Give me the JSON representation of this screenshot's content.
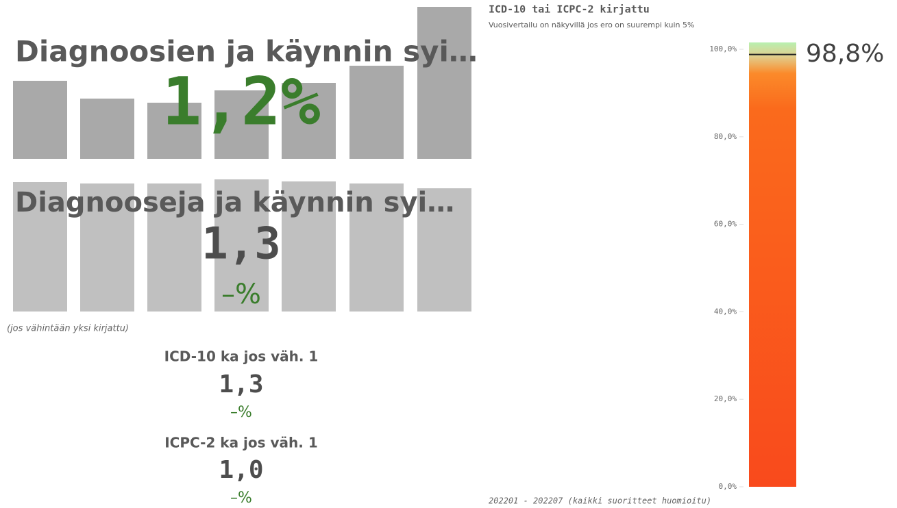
{
  "kpi1": {
    "title": "Diagnoosien ja käynnin syi…",
    "value": "1,2%"
  },
  "kpi2": {
    "title": "Diagnooseja ja käynnin syi…",
    "value": "1,3",
    "change": "–%"
  },
  "note": "(jos vähintään yksi kirjattu)",
  "kpi3": {
    "title": "ICD-10 ka jos väh. 1",
    "value": "1,3",
    "change": "–%"
  },
  "kpi4": {
    "title": "ICPC-2 ka jos väh. 1",
    "value": "1,0",
    "change": "–%"
  },
  "chart_data": {
    "type": "gauge",
    "title": "ICD-10 tai ICPC-2 kirjattu",
    "subtitle": "Vuosivertailu on näkyvillä jos ero on suurempi kuin 5%",
    "values": [
      98.8
    ],
    "value_labels": [
      "98,8%"
    ],
    "ylim": [
      0,
      100
    ],
    "yticks": [
      {
        "value": 0,
        "label": "0,0%"
      },
      {
        "value": 20,
        "label": "20,0%"
      },
      {
        "value": 40,
        "label": "40,0%"
      },
      {
        "value": 60,
        "label": "60,0%"
      },
      {
        "value": 80,
        "label": "80,0%"
      },
      {
        "value": 100,
        "label": "100,0%"
      }
    ],
    "x_label": "202201 - 202207 (kaikki suoritteet huomioitu)"
  }
}
